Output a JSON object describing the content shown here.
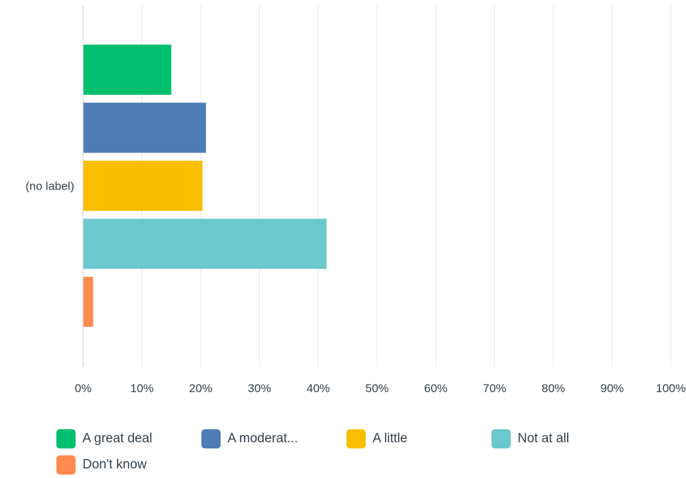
{
  "chart_data": {
    "type": "bar",
    "orientation": "horizontal",
    "categories": [
      "(no label)"
    ],
    "series": [
      {
        "name": "A great deal",
        "values": [
          15.0
        ],
        "color": "#00bf6f"
      },
      {
        "name": "A moderat...",
        "values": [
          20.9
        ],
        "color": "#507cb6"
      },
      {
        "name": "A little",
        "values": [
          20.3
        ],
        "color": "#f9be00"
      },
      {
        "name": "Not at all",
        "values": [
          41.4
        ],
        "color": "#6bc8cd"
      },
      {
        "name": "Don't know",
        "values": [
          1.7
        ],
        "color": "#ff8b4f"
      }
    ],
    "xlim": [
      0,
      100
    ],
    "x_ticks": [
      "0%",
      "10%",
      "20%",
      "30%",
      "40%",
      "50%",
      "60%",
      "70%",
      "80%",
      "90%",
      "100%"
    ],
    "grid": true,
    "legend_position": "bottom"
  }
}
